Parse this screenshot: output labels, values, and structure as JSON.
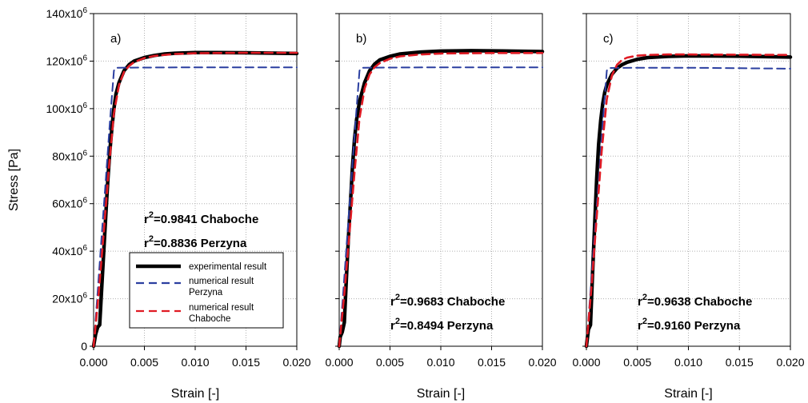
{
  "figure": {
    "ylabel": "Stress [Pa]",
    "y_tick_labels": [
      {
        "mant": "0",
        "exp": ""
      },
      {
        "mant": "20x10",
        "exp": "6"
      },
      {
        "mant": "40x10",
        "exp": "6"
      },
      {
        "mant": "60x10",
        "exp": "6"
      },
      {
        "mant": "80x10",
        "exp": "6"
      },
      {
        "mant": "100x10",
        "exp": "6"
      },
      {
        "mant": "120x10",
        "exp": "6"
      },
      {
        "mant": "140x10",
        "exp": "6"
      }
    ],
    "x_tick_labels": [
      "0.000",
      "0.005",
      "0.010",
      "0.015",
      "0.020"
    ],
    "legend": [
      {
        "line1": "experimental result",
        "line2": "",
        "color": "#000000",
        "style": "solid"
      },
      {
        "line1": "numerical result",
        "line2": "Perzyna",
        "color": "#2b3fa0",
        "style": "dashed"
      },
      {
        "line1": "numerical result",
        "line2": "Chaboche",
        "color": "#e01b24",
        "style": "dashed"
      }
    ]
  },
  "chart_data": [
    {
      "type": "line",
      "panel": "a)",
      "xlabel": "Strain [-]",
      "ylabel": "Stress [Pa]",
      "xlim": [
        0,
        0.02
      ],
      "ylim": [
        0,
        140000000
      ],
      "grid": true,
      "legend_position": "bottom-center",
      "annotations": [
        {
          "prefix": "r",
          "sup": "2",
          "text": "=0.9841 Chaboche"
        },
        {
          "prefix": "r",
          "sup": "2",
          "text": "=0.8836 Perzyna"
        }
      ],
      "series": [
        {
          "name": "experimental result",
          "color": "#000000",
          "style": "solid",
          "x": [
            0,
            0.0002,
            0.0004,
            0.0006,
            0.0008,
            0.001,
            0.0012,
            0.0014,
            0.0016,
            0.0018,
            0.002,
            0.0022,
            0.0025,
            0.003,
            0.0035,
            0.004,
            0.005,
            0.006,
            0.007,
            0.008,
            0.01,
            0.012,
            0.015,
            0.02
          ],
          "y": [
            0,
            5000000,
            8000000,
            9000000,
            25000000,
            40000000,
            55000000,
            70000000,
            82000000,
            92000000,
            100000000,
            106000000,
            111000000,
            116000000,
            118500000,
            120000000,
            121500000,
            122400000,
            123000000,
            123300000,
            123600000,
            123600000,
            123500000,
            123200000
          ]
        },
        {
          "name": "numerical result Perzyna",
          "color": "#2b3fa0",
          "style": "dashed",
          "x": [
            0,
            0.0004,
            0.0008,
            0.0012,
            0.0016,
            0.002,
            0.0022,
            0.005,
            0.01,
            0.015,
            0.02
          ],
          "y": [
            0,
            23000000,
            47000000,
            70000000,
            94000000,
            116000000,
            117200000,
            117300000,
            117400000,
            117400000,
            117400000
          ]
        },
        {
          "name": "numerical result Chaboche",
          "color": "#e01b24",
          "style": "dashed",
          "x": [
            0,
            0.0005,
            0.001,
            0.0015,
            0.002,
            0.0025,
            0.003,
            0.0035,
            0.004,
            0.005,
            0.006,
            0.008,
            0.01,
            0.015,
            0.02
          ],
          "y": [
            0,
            22000000,
            48000000,
            75000000,
            98000000,
            110000000,
            115500000,
            118000000,
            119600000,
            121300000,
            122200000,
            123000000,
            123300000,
            123500000,
            123500000
          ]
        }
      ]
    },
    {
      "type": "line",
      "panel": "b)",
      "xlabel": "Strain [-]",
      "ylabel": "",
      "xlim": [
        0,
        0.02
      ],
      "ylim": [
        0,
        140000000
      ],
      "grid": true,
      "annotations": [
        {
          "prefix": "r",
          "sup": "2",
          "text": "=0.9683 Chaboche"
        },
        {
          "prefix": "r",
          "sup": "2",
          "text": "=0.8494 Perzyna"
        }
      ],
      "series": [
        {
          "name": "experimental result",
          "color": "#000000",
          "style": "solid",
          "x": [
            0,
            0.0001,
            0.0003,
            0.0005,
            0.0007,
            0.0009,
            0.0011,
            0.0013,
            0.0015,
            0.0017,
            0.002,
            0.0025,
            0.003,
            0.0035,
            0.004,
            0.005,
            0.006,
            0.008,
            0.01,
            0.013,
            0.016,
            0.02
          ],
          "y": [
            0,
            4000000,
            6000000,
            10000000,
            28000000,
            45000000,
            60000000,
            75000000,
            87000000,
            95000000,
            103000000,
            111000000,
            116000000,
            118800000,
            120500000,
            122000000,
            123000000,
            123800000,
            124200000,
            124400000,
            124300000,
            124000000
          ]
        },
        {
          "name": "numerical result Perzyna",
          "color": "#2b3fa0",
          "style": "dashed",
          "x": [
            0,
            0.0004,
            0.0008,
            0.0012,
            0.0016,
            0.002,
            0.0022,
            0.005,
            0.01,
            0.015,
            0.02
          ],
          "y": [
            0,
            23000000,
            47000000,
            70000000,
            94000000,
            116000000,
            117200000,
            117300000,
            117400000,
            117400000,
            117400000
          ]
        },
        {
          "name": "numerical result Chaboche",
          "color": "#e01b24",
          "style": "dashed",
          "x": [
            0,
            0.0005,
            0.001,
            0.0015,
            0.002,
            0.0025,
            0.003,
            0.0035,
            0.004,
            0.005,
            0.006,
            0.008,
            0.01,
            0.015,
            0.02
          ],
          "y": [
            0,
            22000000,
            47000000,
            73000000,
            96000000,
            108500000,
            114500000,
            117500000,
            119200000,
            121000000,
            122000000,
            122800000,
            123200000,
            123400000,
            123400000
          ]
        }
      ]
    },
    {
      "type": "line",
      "panel": "c)",
      "xlabel": "Strain [-]",
      "ylabel": "",
      "xlim": [
        0,
        0.02
      ],
      "ylim": [
        0,
        140000000
      ],
      "grid": true,
      "annotations": [
        {
          "prefix": "r",
          "sup": "2",
          "text": "=0.9638 Chaboche"
        },
        {
          "prefix": "r",
          "sup": "2",
          "text": "=0.9160 Perzyna"
        }
      ],
      "series": [
        {
          "name": "experimental result",
          "color": "#000000",
          "style": "solid",
          "x": [
            0,
            0.0002,
            0.0004,
            0.0006,
            0.0008,
            0.001,
            0.0012,
            0.0014,
            0.0016,
            0.0018,
            0.002,
            0.0025,
            0.003,
            0.0035,
            0.004,
            0.005,
            0.006,
            0.008,
            0.01,
            0.015,
            0.02
          ],
          "y": [
            0,
            7000000,
            9000000,
            30000000,
            50000000,
            70000000,
            85000000,
            95000000,
            102000000,
            107000000,
            110000000,
            114500000,
            117000000,
            118500000,
            119500000,
            120800000,
            121500000,
            122000000,
            122200000,
            122100000,
            121700000
          ]
        },
        {
          "name": "numerical result Perzyna",
          "color": "#2b3fa0",
          "style": "dashed",
          "x": [
            0,
            0.0004,
            0.0008,
            0.0012,
            0.0016,
            0.002,
            0.0022,
            0.005,
            0.01,
            0.015,
            0.02
          ],
          "y": [
            0,
            23000000,
            47000000,
            70000000,
            94000000,
            116000000,
            117100000,
            117200000,
            117200000,
            117000000,
            116800000
          ]
        },
        {
          "name": "numerical result Chaboche",
          "color": "#e01b24",
          "style": "dashed",
          "x": [
            0,
            0.0005,
            0.001,
            0.0015,
            0.002,
            0.0025,
            0.003,
            0.0035,
            0.004,
            0.005,
            0.006,
            0.008,
            0.01,
            0.015,
            0.02
          ],
          "y": [
            0,
            25000000,
            54000000,
            82000000,
            104000000,
            114000000,
            118500000,
            120500000,
            121500000,
            122300000,
            122600000,
            122800000,
            122800000,
            122700000,
            122600000
          ]
        }
      ]
    }
  ]
}
